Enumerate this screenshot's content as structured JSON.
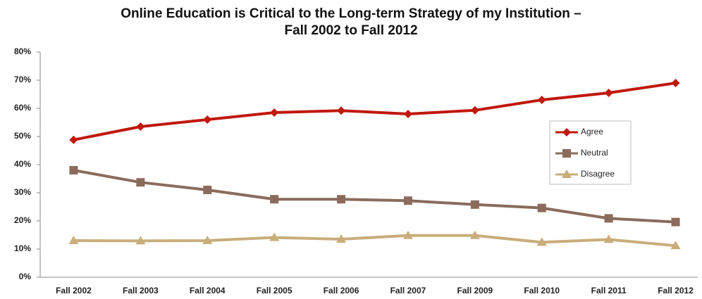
{
  "chart_data": {
    "type": "line",
    "title": "Online Education is Critical to the Long-term Strategy of my Institution –",
    "subtitle": "Fall 2002 to Fall 2012",
    "categories": [
      "Fall 2002",
      "Fall 2003",
      "Fall 2004",
      "Fall 2005",
      "Fall 2006",
      "Fall 2007",
      "Fall 2009",
      "Fall 2010",
      "Fall 2011",
      "Fall 2012"
    ],
    "series": [
      {
        "name": "Agree",
        "color": "#c0180c",
        "marker": "diamond",
        "values": [
          48.8,
          53.5,
          56,
          58.5,
          59.2,
          58,
          59.3,
          63,
          65.5,
          69
        ]
      },
      {
        "name": "Neutral",
        "color": "#8b6b5c",
        "marker": "square",
        "values": [
          38,
          33.7,
          31,
          27.7,
          27.7,
          27.2,
          25.8,
          24.6,
          20.9,
          19.6
        ]
      },
      {
        "name": "Disagree",
        "color": "#c9ad7a",
        "marker": "triangle",
        "values": [
          13,
          12.9,
          13,
          14.1,
          13.5,
          14.8,
          14.8,
          12.4,
          13.4,
          11.2
        ]
      }
    ],
    "ylim": [
      0,
      80
    ],
    "yticks": [
      {
        "value": 0,
        "label": "0%"
      },
      {
        "value": 10,
        "label": "10%"
      },
      {
        "value": 20,
        "label": "20%"
      },
      {
        "value": 30,
        "label": "30%"
      },
      {
        "value": 40,
        "label": "40%"
      },
      {
        "value": 50,
        "label": "50%"
      },
      {
        "value": 60,
        "label": "60%"
      },
      {
        "value": 70,
        "label": "70%"
      },
      {
        "value": 80,
        "label": "80%"
      }
    ],
    "legend": "right"
  }
}
